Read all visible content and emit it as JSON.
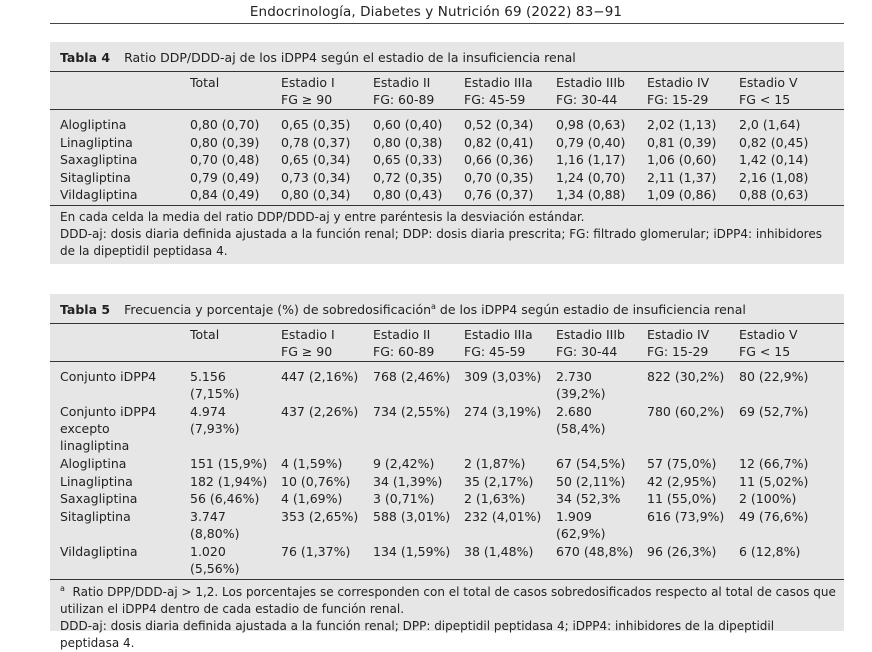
{
  "page_header": "Endocrinología, Diabetes y Nutrición 69 (2022) 83−91",
  "table4": {
    "number": "Tabla 4",
    "caption": "Ratio DDP/DDD-aj de los iDPP4 según el estadio de la insuficiencia renal",
    "columns": [
      {
        "l1": "Total",
        "l2": ""
      },
      {
        "l1": "Estadio I",
        "l2": "FG ≥ 90"
      },
      {
        "l1": "Estadio II",
        "l2": "FG: 60-89"
      },
      {
        "l1": "Estadio IIIa",
        "l2": "FG: 45-59"
      },
      {
        "l1": "Estadio IIIb",
        "l2": "FG: 30-44"
      },
      {
        "l1": "Estadio IV",
        "l2": "FG: 15-29"
      },
      {
        "l1": "Estadio V",
        "l2": "FG < 15"
      }
    ],
    "rows": [
      {
        "name": "Alogliptina",
        "cells": [
          "0,80 (0,70)",
          "0,65 (0,35)",
          "0,60 (0,40)",
          "0,52 (0,34)",
          "0,98 (0,63)",
          "2,02 (1,13)",
          "2,0 (1,64)"
        ]
      },
      {
        "name": "Linagliptina",
        "cells": [
          "0,80 (0,39)",
          "0,78 (0,37)",
          "0,80 (0,38)",
          "0,82 (0,41)",
          "0,79 (0,40)",
          "0,81 (0,39)",
          "0,82 (0,45)"
        ]
      },
      {
        "name": "Saxagliptina",
        "cells": [
          "0,70 (0,48)",
          "0,65 (0,34)",
          "0,65 (0,33)",
          "0,66 (0,36)",
          "1,16 (1,17)",
          "1,06 (0,60)",
          "1,42 (0,14)"
        ]
      },
      {
        "name": "Sitagliptina",
        "cells": [
          "0,79 (0,49)",
          "0,73 (0,34)",
          "0,72 (0,35)",
          "0,70 (0,35)",
          "1,24 (0,70)",
          "2,11 (1,37)",
          "2,16 (1,08)"
        ]
      },
      {
        "name": "Vildagliptina",
        "cells": [
          "0,84 (0,49)",
          "0,80 (0,34)",
          "0,80 (0,43)",
          "0,76 (0,37)",
          "1,34 (0,88)",
          "1,09 (0,86)",
          "0,88 (0,63)"
        ]
      }
    ],
    "footnotes": [
      "En cada celda la media del ratio DDP/DDD-aj y entre paréntesis la desviación estándar.",
      "DDD-aj: dosis diaria definida ajustada a la función renal; DDP: dosis diaria prescrita; FG: filtrado glomerular; iDPP4: inhibidores de la dipeptidil peptidasa 4."
    ]
  },
  "table5": {
    "number": "Tabla 5",
    "caption_before": "Frecuencia y porcentaje (%) de sobredosificación",
    "caption_sup": "a",
    "caption_after": " de los iDPP4 según estadio de insuficiencia renal",
    "columns": [
      {
        "l1": "Total",
        "l2": ""
      },
      {
        "l1": "Estadio I",
        "l2": "FG ≥ 90"
      },
      {
        "l1": "Estadio II",
        "l2": "FG: 60-89"
      },
      {
        "l1": "Estadio IIIa",
        "l2": "FG: 45-59"
      },
      {
        "l1": "Estadio IIIb",
        "l2": "FG: 30-44"
      },
      {
        "l1": "Estadio IV",
        "l2": "FG: 15-29"
      },
      {
        "l1": "Estadio V",
        "l2": "FG < 15"
      }
    ],
    "rows": [
      {
        "name": [
          "Conjunto iDPP4"
        ],
        "cells": [
          [
            "5.156",
            "(7,15%)"
          ],
          [
            "447 (2,16%)"
          ],
          [
            "768 (2,46%)"
          ],
          [
            "309 (3,03%)"
          ],
          [
            "2.730",
            "(39,2%)"
          ],
          [
            "822 (30,2%)"
          ],
          [
            "80 (22,9%)"
          ]
        ]
      },
      {
        "name": [
          "Conjunto iDPP4",
          "excepto",
          "linagliptina"
        ],
        "cells": [
          [
            "4.974",
            "(7,93%)"
          ],
          [
            "437 (2,26%)"
          ],
          [
            "734 (2,55%)"
          ],
          [
            "274 (3,19%)"
          ],
          [
            "2.680",
            "(58,4%)"
          ],
          [
            "780 (60,2%)"
          ],
          [
            "69 (52,7%)"
          ]
        ]
      },
      {
        "name": [
          "Alogliptina"
        ],
        "cells": [
          [
            "151 (15,9%)"
          ],
          [
            "4 (1,59%)"
          ],
          [
            "9 (2,42%)"
          ],
          [
            "2 (1,87%)"
          ],
          [
            "67 (54,5%)"
          ],
          [
            "57 (75,0%)"
          ],
          [
            "12 (66,7%)"
          ]
        ]
      },
      {
        "name": [
          "Linagliptina"
        ],
        "cells": [
          [
            "182 (1,94%)"
          ],
          [
            "10 (0,76%)"
          ],
          [
            "34 (1,39%)"
          ],
          [
            "35 (2,17%)"
          ],
          [
            "50 (2,11%)"
          ],
          [
            "42 (2,95%)"
          ],
          [
            "11 (5,02%)"
          ]
        ]
      },
      {
        "name": [
          "Saxagliptina"
        ],
        "cells": [
          [
            "56 (6,46%)"
          ],
          [
            "4 (1,69%)"
          ],
          [
            "3 (0,71%)"
          ],
          [
            "2 (1,63%)"
          ],
          [
            "34 (52,3%"
          ],
          [
            "11 (55,0%)"
          ],
          [
            "2 (100%)"
          ]
        ]
      },
      {
        "name": [
          "Sitagliptina"
        ],
        "cells": [
          [
            "3.747",
            "(8,80%)"
          ],
          [
            "353 (2,65%)"
          ],
          [
            "588 (3,01%)"
          ],
          [
            "232 (4,01%)"
          ],
          [
            "1.909",
            "(62,9%)"
          ],
          [
            "616 (73,9%)"
          ],
          [
            "49 (76,6%)"
          ]
        ]
      },
      {
        "name": [
          "Vildagliptina"
        ],
        "cells": [
          [
            "1.020",
            "(5,56%)"
          ],
          [
            "76 (1,37%)"
          ],
          [
            "134 (1,59%)"
          ],
          [
            "38 (1,48%)"
          ],
          [
            "670 (48,8%)"
          ],
          [
            "96 (26,3%)"
          ],
          [
            "6 (12,8%)"
          ]
        ]
      }
    ],
    "footnote_sup": "a",
    "footnotes": [
      "Ratio DPP/DDD-aj > 1,2. Los porcentajes se corresponden con el total de casos sobredosificados respecto al total de casos que utilizan el iDPP4 dentro de cada estadio de función renal.",
      "DDD-aj: dosis diaria definida ajustada a la función renal; DPP: dipeptidil peptidasa 4; iDPP4: inhibidores de la dipeptidil peptidasa 4."
    ]
  }
}
